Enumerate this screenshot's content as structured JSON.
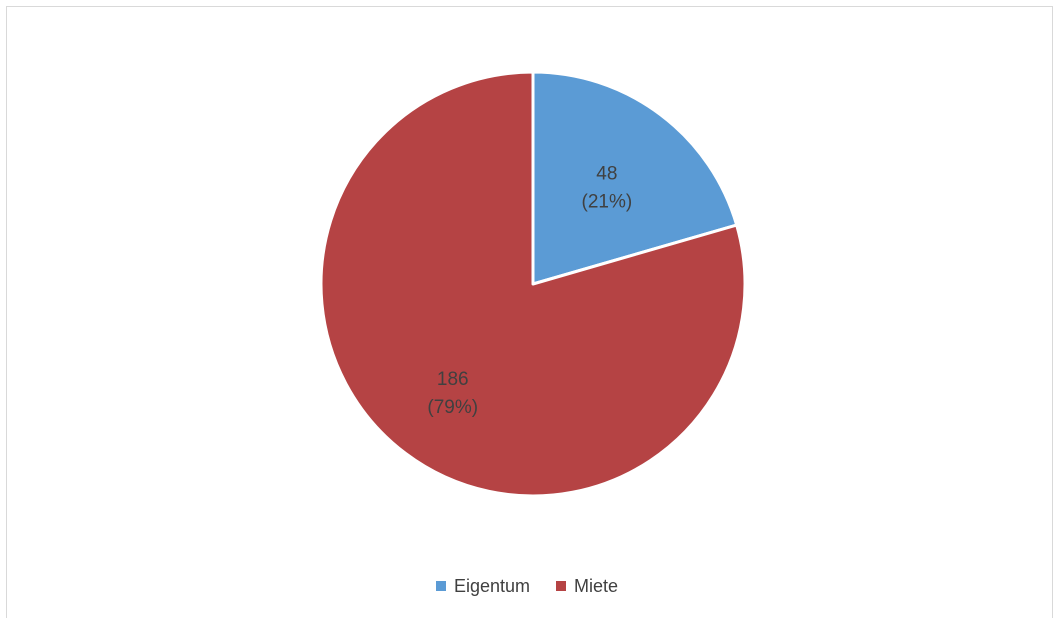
{
  "chart_data": {
    "type": "pie",
    "title": "",
    "slices": [
      {
        "label": "Eigentum",
        "value": 48,
        "percent_label": "(21%)",
        "value_label": "48",
        "color": "#5b9bd5"
      },
      {
        "label": "Miete",
        "value": 186,
        "percent_label": "(79%)",
        "value_label": "186",
        "color": "#b54344"
      }
    ],
    "start_angle_deg": 0,
    "direction": "clockwise",
    "legend_position": "bottom",
    "data_labels": "value and percentage"
  },
  "legend": {
    "items": [
      {
        "label": "Eigentum",
        "color": "#5b9bd5"
      },
      {
        "label": "Miete",
        "color": "#b54344"
      }
    ]
  }
}
